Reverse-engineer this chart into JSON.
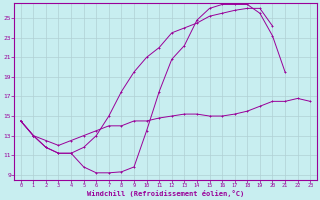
{
  "xlabel": "Windchill (Refroidissement éolien,°C)",
  "background_color": "#c8eef0",
  "line_color": "#990099",
  "grid_color": "#b0d0d4",
  "xlim": [
    -0.5,
    23.5
  ],
  "ylim": [
    8.5,
    26.5
  ],
  "xticks": [
    0,
    1,
    2,
    3,
    4,
    5,
    6,
    7,
    8,
    9,
    10,
    11,
    12,
    13,
    14,
    15,
    16,
    17,
    18,
    19,
    20,
    21,
    22,
    23
  ],
  "yticks": [
    9,
    11,
    13,
    15,
    17,
    19,
    21,
    23,
    25
  ],
  "line1_x": [
    0,
    1,
    2,
    3,
    4,
    5,
    6,
    7,
    8,
    9,
    10,
    11,
    12,
    13,
    14,
    15,
    16,
    17,
    18,
    19,
    20,
    21
  ],
  "line1_y": [
    14.5,
    13.0,
    11.8,
    11.2,
    11.2,
    9.8,
    9.2,
    9.2,
    9.3,
    9.8,
    13.5,
    17.5,
    20.8,
    22.2,
    24.8,
    26.0,
    26.4,
    26.4,
    26.4,
    25.5,
    23.2,
    19.5
  ],
  "line2_x": [
    0,
    1,
    2,
    3,
    4,
    5,
    6,
    7,
    8,
    9,
    10,
    11,
    12,
    13,
    14,
    15,
    16,
    17,
    18,
    19,
    20
  ],
  "line2_y": [
    14.5,
    13.0,
    11.8,
    11.2,
    11.2,
    11.8,
    13.0,
    15.0,
    17.5,
    19.5,
    21.0,
    22.0,
    23.5,
    24.0,
    24.5,
    25.2,
    25.5,
    25.8,
    26.0,
    26.0,
    24.2
  ],
  "line3_x": [
    0,
    1,
    2,
    3,
    4,
    5,
    6,
    7,
    8,
    9,
    10,
    11,
    12,
    13,
    14,
    15,
    16,
    17,
    18,
    19,
    20,
    21,
    22,
    23
  ],
  "line3_y": [
    14.5,
    13.0,
    12.5,
    12.0,
    12.5,
    13.0,
    13.5,
    14.0,
    14.0,
    14.5,
    14.5,
    14.8,
    15.0,
    15.2,
    15.2,
    15.0,
    15.0,
    15.2,
    15.5,
    16.0,
    16.5,
    16.5,
    16.8,
    16.5
  ]
}
